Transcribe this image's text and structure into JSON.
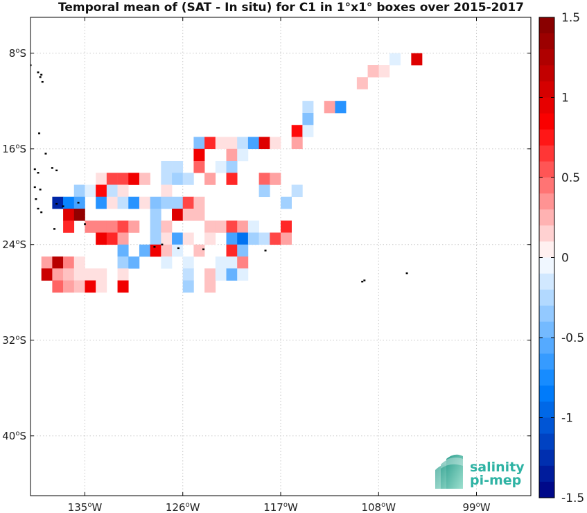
{
  "chart_data": {
    "type": "heatmap",
    "title": "Temporal mean of (SAT - In situ) for C1 in 1°x1° boxes over 2015-2017",
    "x_axis": {
      "range": [
        -140,
        -94
      ],
      "ticks": [
        {
          "value": -135,
          "deg": "135",
          "hemi": "W"
        },
        {
          "value": -126,
          "deg": "126",
          "hemi": "W"
        },
        {
          "value": -117,
          "deg": "117",
          "hemi": "W"
        },
        {
          "value": -108,
          "deg": "108",
          "hemi": "W"
        },
        {
          "value": -99,
          "deg": "99",
          "hemi": "W"
        }
      ]
    },
    "y_axis": {
      "range": [
        -45,
        -5
      ],
      "ticks": [
        {
          "value": -8,
          "deg": "8",
          "hemi": "S"
        },
        {
          "value": -16,
          "deg": "16",
          "hemi": "S"
        },
        {
          "value": -24,
          "deg": "24",
          "hemi": "S"
        },
        {
          "value": -32,
          "deg": "32",
          "hemi": "S"
        },
        {
          "value": -40,
          "deg": "40",
          "hemi": "S"
        }
      ]
    },
    "grid": true,
    "colorbar": {
      "min": -1.5,
      "max": 1.5,
      "ticks": [
        {
          "value": 1.5,
          "label": "1.5"
        },
        {
          "value": 1,
          "label": "1"
        },
        {
          "value": 0.5,
          "label": "0.5"
        },
        {
          "value": 0,
          "label": "0"
        },
        {
          "value": -0.5,
          "label": "-0.5"
        },
        {
          "value": -1,
          "label": "-1"
        },
        {
          "value": -1.5,
          "label": "-1.5"
        }
      ]
    },
    "cells": [
      {
        "lon": -104.5,
        "lat": -8.5,
        "value": 1.0
      },
      {
        "lon": -106.5,
        "lat": -8.5,
        "value": -0.1
      },
      {
        "lon": -107.5,
        "lat": -9.5,
        "value": 0.1
      },
      {
        "lon": -108.5,
        "lat": -9.5,
        "value": 0.2
      },
      {
        "lon": -109.5,
        "lat": -10.5,
        "value": 0.2
      },
      {
        "lon": -112.5,
        "lat": -12.5,
        "value": 0.3
      },
      {
        "lon": -111.5,
        "lat": -12.5,
        "value": -0.7
      },
      {
        "lon": -114.5,
        "lat": -12.5,
        "value": -0.2
      },
      {
        "lon": -114.5,
        "lat": -13.5,
        "value": -0.4
      },
      {
        "lon": -115.5,
        "lat": -14.5,
        "value": 0.8
      },
      {
        "lon": -114.5,
        "lat": -14.5,
        "value": -0.1
      },
      {
        "lon": -115.5,
        "lat": -15.5,
        "value": 0.3
      },
      {
        "lon": -124.5,
        "lat": -15.5,
        "value": -0.4
      },
      {
        "lon": -123.5,
        "lat": -15.5,
        "value": 0.7
      },
      {
        "lon": -122.5,
        "lat": -15.5,
        "value": 0.1
      },
      {
        "lon": -121.5,
        "lat": -15.5,
        "value": 0.1
      },
      {
        "lon": -120.5,
        "lat": -15.5,
        "value": -0.2
      },
      {
        "lon": -119.5,
        "lat": -15.5,
        "value": -0.6
      },
      {
        "lon": -118.5,
        "lat": -15.5,
        "value": 1.0
      },
      {
        "lon": -117.5,
        "lat": -15.5,
        "value": 0.1
      },
      {
        "lon": -124.5,
        "lat": -16.5,
        "value": 0.9
      },
      {
        "lon": -121.5,
        "lat": -16.5,
        "value": 0.3
      },
      {
        "lon": -120.5,
        "lat": -16.5,
        "value": -0.1
      },
      {
        "lon": -127.5,
        "lat": -17.5,
        "value": -0.2
      },
      {
        "lon": -126.5,
        "lat": -17.5,
        "value": -0.2
      },
      {
        "lon": -124.5,
        "lat": -17.5,
        "value": 0.5
      },
      {
        "lon": -122.5,
        "lat": -17.5,
        "value": -0.1
      },
      {
        "lon": -121.5,
        "lat": -17.5,
        "value": -0.3
      },
      {
        "lon": -133.5,
        "lat": -18.5,
        "value": 0.1
      },
      {
        "lon": -132.5,
        "lat": -18.5,
        "value": 0.6
      },
      {
        "lon": -131.5,
        "lat": -18.5,
        "value": 0.6
      },
      {
        "lon": -130.5,
        "lat": -18.5,
        "value": 0.9
      },
      {
        "lon": -129.5,
        "lat": -18.5,
        "value": 0.2
      },
      {
        "lon": -127.5,
        "lat": -18.5,
        "value": -0.2
      },
      {
        "lon": -126.5,
        "lat": -18.5,
        "value": -0.3
      },
      {
        "lon": -125.5,
        "lat": -18.5,
        "value": -0.2
      },
      {
        "lon": -123.5,
        "lat": -18.5,
        "value": 0.3
      },
      {
        "lon": -121.5,
        "lat": -18.5,
        "value": 0.7
      },
      {
        "lon": -118.5,
        "lat": -18.5,
        "value": 0.5
      },
      {
        "lon": -117.5,
        "lat": -18.5,
        "value": 0.3
      },
      {
        "lon": -135.5,
        "lat": -19.5,
        "value": -0.3
      },
      {
        "lon": -134.5,
        "lat": -19.5,
        "value": -0.1
      },
      {
        "lon": -133.5,
        "lat": -19.5,
        "value": 0.8
      },
      {
        "lon": -132.5,
        "lat": -19.5,
        "value": -0.2
      },
      {
        "lon": -131.5,
        "lat": -19.5,
        "value": 0.1
      },
      {
        "lon": -127.5,
        "lat": -19.5,
        "value": 0.1
      },
      {
        "lon": -118.5,
        "lat": -19.5,
        "value": -0.3
      },
      {
        "lon": -115.5,
        "lat": -19.5,
        "value": -0.2
      },
      {
        "lon": -137.5,
        "lat": -20.5,
        "value": -1.3
      },
      {
        "lon": -136.5,
        "lat": -20.5,
        "value": -0.8
      },
      {
        "lon": -135.5,
        "lat": -20.5,
        "value": -0.6
      },
      {
        "lon": -133.5,
        "lat": -20.5,
        "value": -0.7
      },
      {
        "lon": -132.5,
        "lat": -20.5,
        "value": 0.1
      },
      {
        "lon": -131.5,
        "lat": -20.5,
        "value": -0.2
      },
      {
        "lon": -130.5,
        "lat": -20.5,
        "value": -0.7
      },
      {
        "lon": -129.5,
        "lat": -20.5,
        "value": 0.1
      },
      {
        "lon": -128.5,
        "lat": -20.5,
        "value": -0.4
      },
      {
        "lon": -127.5,
        "lat": -20.5,
        "value": -0.3
      },
      {
        "lon": -126.5,
        "lat": -20.5,
        "value": -0.3
      },
      {
        "lon": -125.5,
        "lat": -20.5,
        "value": 0.6
      },
      {
        "lon": -124.5,
        "lat": -20.5,
        "value": 0.2
      },
      {
        "lon": -116.5,
        "lat": -20.5,
        "value": -0.3
      },
      {
        "lon": -136.5,
        "lat": -21.5,
        "value": 1.0
      },
      {
        "lon": -135.5,
        "lat": -21.5,
        "value": 1.4
      },
      {
        "lon": -128.5,
        "lat": -21.5,
        "value": -0.3
      },
      {
        "lon": -126.5,
        "lat": -21.5,
        "value": 1.0
      },
      {
        "lon": -125.5,
        "lat": -21.5,
        "value": 0.2
      },
      {
        "lon": -124.5,
        "lat": -21.5,
        "value": 0.2
      },
      {
        "lon": -136.5,
        "lat": -22.5,
        "value": 0.7
      },
      {
        "lon": -134.5,
        "lat": -22.5,
        "value": 0.4
      },
      {
        "lon": -133.5,
        "lat": -22.5,
        "value": 0.4
      },
      {
        "lon": -132.5,
        "lat": -22.5,
        "value": 0.4
      },
      {
        "lon": -131.5,
        "lat": -22.5,
        "value": 0.6
      },
      {
        "lon": -130.5,
        "lat": -22.5,
        "value": 0.3
      },
      {
        "lon": -128.5,
        "lat": -22.5,
        "value": -0.3
      },
      {
        "lon": -127.5,
        "lat": -22.5,
        "value": 0.2
      },
      {
        "lon": -123.5,
        "lat": -22.5,
        "value": 0.2
      },
      {
        "lon": -122.5,
        "lat": -22.5,
        "value": 0.2
      },
      {
        "lon": -121.5,
        "lat": -22.5,
        "value": 0.6
      },
      {
        "lon": -120.5,
        "lat": -22.5,
        "value": 0.3
      },
      {
        "lon": -119.5,
        "lat": -22.5,
        "value": -0.1
      },
      {
        "lon": -116.5,
        "lat": -22.5,
        "value": 0.7
      },
      {
        "lon": -133.5,
        "lat": -23.5,
        "value": 0.9
      },
      {
        "lon": -132.5,
        "lat": -23.5,
        "value": 0.7
      },
      {
        "lon": -131.5,
        "lat": -23.5,
        "value": 0.3
      },
      {
        "lon": -128.5,
        "lat": -23.5,
        "value": -0.3
      },
      {
        "lon": -127.5,
        "lat": -23.5,
        "value": 0.1
      },
      {
        "lon": -126.5,
        "lat": -23.5,
        "value": -0.6
      },
      {
        "lon": -125.5,
        "lat": -23.5,
        "value": 0.1
      },
      {
        "lon": -123.5,
        "lat": -23.5,
        "value": 0.1
      },
      {
        "lon": -121.5,
        "lat": -23.5,
        "value": -0.6
      },
      {
        "lon": -120.5,
        "lat": -23.5,
        "value": -0.9
      },
      {
        "lon": -119.5,
        "lat": -23.5,
        "value": -0.3
      },
      {
        "lon": -118.5,
        "lat": -23.5,
        "value": -0.2
      },
      {
        "lon": -117.5,
        "lat": -23.5,
        "value": 0.6
      },
      {
        "lon": -116.5,
        "lat": -23.5,
        "value": 0.3
      },
      {
        "lon": -131.5,
        "lat": -24.5,
        "value": -0.5
      },
      {
        "lon": -129.5,
        "lat": -24.5,
        "value": -0.5
      },
      {
        "lon": -128.5,
        "lat": -24.5,
        "value": 0.9
      },
      {
        "lon": -127.5,
        "lat": -24.5,
        "value": 0.2
      },
      {
        "lon": -126.5,
        "lat": -24.5,
        "value": -0.1
      },
      {
        "lon": -124.5,
        "lat": -24.5,
        "value": 0.2
      },
      {
        "lon": -121.5,
        "lat": -24.5,
        "value": 0.7
      },
      {
        "lon": -120.5,
        "lat": -24.5,
        "value": -0.4
      },
      {
        "lon": -138.5,
        "lat": -25.5,
        "value": 0.3
      },
      {
        "lon": -137.5,
        "lat": -25.5,
        "value": 1.2
      },
      {
        "lon": -136.5,
        "lat": -25.5,
        "value": 0.4
      },
      {
        "lon": -135.5,
        "lat": -25.5,
        "value": 0.1
      },
      {
        "lon": -131.5,
        "lat": -25.5,
        "value": -0.3
      },
      {
        "lon": -130.5,
        "lat": -25.5,
        "value": -0.5
      },
      {
        "lon": -127.5,
        "lat": -25.5,
        "value": -0.1
      },
      {
        "lon": -125.5,
        "lat": -25.5,
        "value": -0.1
      },
      {
        "lon": -122.5,
        "lat": -25.5,
        "value": -0.1
      },
      {
        "lon": -121.5,
        "lat": -25.5,
        "value": -0.1
      },
      {
        "lon": -120.5,
        "lat": -25.5,
        "value": 0.4
      },
      {
        "lon": -138.5,
        "lat": -26.5,
        "value": 1.1
      },
      {
        "lon": -137.5,
        "lat": -26.5,
        "value": 0.3
      },
      {
        "lon": -136.5,
        "lat": -26.5,
        "value": 0.2
      },
      {
        "lon": -135.5,
        "lat": -26.5,
        "value": 0.1
      },
      {
        "lon": -134.5,
        "lat": -26.5,
        "value": 0.1
      },
      {
        "lon": -133.5,
        "lat": -26.5,
        "value": 0.1
      },
      {
        "lon": -131.5,
        "lat": -26.5,
        "value": 0.1
      },
      {
        "lon": -125.5,
        "lat": -26.5,
        "value": -0.2
      },
      {
        "lon": -123.5,
        "lat": -26.5,
        "value": 0.2
      },
      {
        "lon": -122.5,
        "lat": -26.5,
        "value": -0.1
      },
      {
        "lon": -121.5,
        "lat": -26.5,
        "value": -0.5
      },
      {
        "lon": -120.5,
        "lat": -26.5,
        "value": -0.1
      },
      {
        "lon": -137.5,
        "lat": -27.5,
        "value": 0.5
      },
      {
        "lon": -136.5,
        "lat": -27.5,
        "value": 0.3
      },
      {
        "lon": -135.5,
        "lat": -27.5,
        "value": 0.2
      },
      {
        "lon": -134.5,
        "lat": -27.5,
        "value": 0.9
      },
      {
        "lon": -133.5,
        "lat": -27.5,
        "value": 0.1
      },
      {
        "lon": -131.5,
        "lat": -27.5,
        "value": 0.9
      },
      {
        "lon": -125.5,
        "lat": -27.5,
        "value": -0.3
      },
      {
        "lon": -123.5,
        "lat": -27.5,
        "value": 0.2
      }
    ],
    "land_dots": [
      {
        "lon": -140.0,
        "lat": -9.0
      },
      {
        "lon": -139.3,
        "lat": -9.6
      },
      {
        "lon": -139.0,
        "lat": -9.8
      },
      {
        "lon": -139.1,
        "lat": -10.0
      },
      {
        "lon": -138.9,
        "lat": -10.4
      },
      {
        "lon": -139.2,
        "lat": -14.7
      },
      {
        "lon": -138.6,
        "lat": -16.4
      },
      {
        "lon": -139.6,
        "lat": -17.7
      },
      {
        "lon": -139.3,
        "lat": -18.0
      },
      {
        "lon": -138.0,
        "lat": -17.6
      },
      {
        "lon": -137.6,
        "lat": -17.8
      },
      {
        "lon": -139.6,
        "lat": -19.2
      },
      {
        "lon": -139.1,
        "lat": -19.4
      },
      {
        "lon": -139.5,
        "lat": -20.2
      },
      {
        "lon": -139.3,
        "lat": -21.0
      },
      {
        "lon": -139.0,
        "lat": -21.3
      },
      {
        "lon": -137.6,
        "lat": -20.6
      },
      {
        "lon": -137.0,
        "lat": -20.8
      },
      {
        "lon": -135.6,
        "lat": -20.5
      },
      {
        "lon": -135.0,
        "lat": -22.3
      },
      {
        "lon": -137.8,
        "lat": -22.7
      },
      {
        "lon": -128.6,
        "lat": -24.2
      },
      {
        "lon": -127.9,
        "lat": -24.0
      },
      {
        "lon": -126.4,
        "lat": -24.3
      },
      {
        "lon": -124.1,
        "lat": -24.4
      },
      {
        "lon": -118.4,
        "lat": -24.5
      },
      {
        "lon": -109.5,
        "lat": -27.1
      },
      {
        "lon": -109.3,
        "lat": -27.0
      },
      {
        "lon": -105.4,
        "lat": -26.4
      }
    ]
  },
  "logo": {
    "line1": "salinity",
    "line2": "pi-mep"
  },
  "colors": {
    "grid": "#c8c8c8",
    "axis": "#000000",
    "logo_text": "#2fb3a4"
  }
}
